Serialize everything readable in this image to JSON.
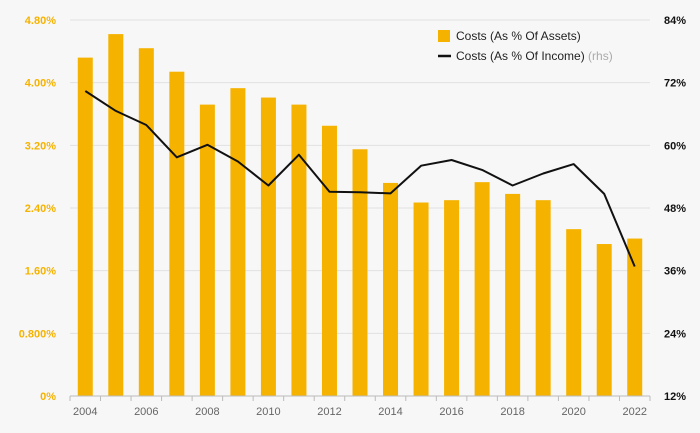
{
  "chart_data": {
    "type": "bar",
    "categories": [
      "2004",
      "2005",
      "2006",
      "2007",
      "2008",
      "2009",
      "2010",
      "2011",
      "2012",
      "2013",
      "2014",
      "2015",
      "2016",
      "2017",
      "2018",
      "2019",
      "2020",
      "2021",
      "2022"
    ],
    "series": [
      {
        "name": "Costs (As % Of Assets)",
        "type": "bar",
        "axis": "left",
        "color": "#f5b300",
        "values": [
          4.32,
          4.62,
          4.44,
          4.14,
          3.72,
          3.93,
          3.81,
          3.72,
          3.45,
          3.15,
          2.72,
          2.47,
          2.5,
          2.73,
          2.58,
          2.5,
          2.13,
          1.94,
          2.01
        ]
      },
      {
        "name": "Costs (As % Of Income)",
        "type": "line",
        "axis": "right",
        "color": "#111111",
        "values": [
          70.4,
          66.6,
          63.9,
          57.7,
          60.1,
          56.9,
          52.3,
          58.2,
          51.1,
          51.0,
          50.8,
          56.1,
          57.2,
          55.3,
          52.3,
          54.6,
          56.4,
          50.7,
          36.8
        ]
      }
    ],
    "legend": {
      "position": "top-right",
      "items": [
        {
          "label": "Costs (As % Of Assets)",
          "suffix": ""
        },
        {
          "label": "Costs (As % Of Income)",
          "suffix": "(rhs)"
        }
      ]
    },
    "y_left": {
      "range": [
        0,
        4.8
      ],
      "ticks": [
        0,
        0.8,
        1.6,
        2.4,
        3.2,
        4.0,
        4.8
      ],
      "tick_labels": [
        "0%",
        "0.800%",
        "1.60%",
        "2.40%",
        "3.20%",
        "4.00%",
        "4.80%"
      ],
      "color": "#f5b300"
    },
    "y_right": {
      "range": [
        12,
        84
      ],
      "ticks": [
        12,
        24,
        36,
        48,
        60,
        72,
        84
      ],
      "tick_labels": [
        "12%",
        "24%",
        "36%",
        "48%",
        "60%",
        "72%",
        "84%"
      ],
      "color": "#111111"
    },
    "x_tick_labels": [
      "2004",
      "2006",
      "2008",
      "2010",
      "2012",
      "2014",
      "2016",
      "2018",
      "2020",
      "2022"
    ],
    "grid": true
  }
}
